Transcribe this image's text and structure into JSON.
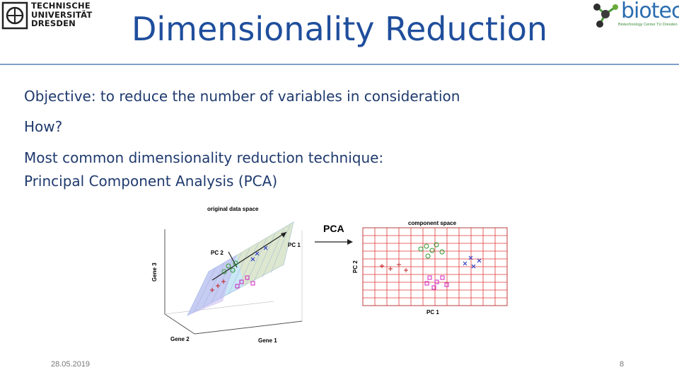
{
  "header": {
    "title": "Dimensionality Reduction",
    "tu_logo": {
      "line1": "TECHNISCHE",
      "line2": "UNIVERSITÄT",
      "line3": "DRESDEN"
    },
    "biotec_logo": {
      "word": "biotec",
      "tagline": "Biotechnology Center TU Dresden"
    }
  },
  "body": {
    "lines": [
      "Objective: to reduce the number of variables in consideration",
      "How?",
      "Most common dimensionality reduction technique:",
      "Principal Component Analysis (PCA)"
    ]
  },
  "figure": {
    "left_title": "original data space",
    "arrow_label": "PCA",
    "right_title": "component space",
    "pc1": "PC 1",
    "pc2": "PC 2",
    "gene1": "Gene 1",
    "gene2": "Gene 2",
    "gene3": "Gene 3",
    "right_xlabel": "PC 1",
    "right_ylabel": "PC 2"
  },
  "footer": {
    "date": "28.05.2019",
    "page": "8"
  },
  "colors": {
    "title": "#1f4e9c",
    "body_text": "#1f3a6e",
    "rule": "#7ea0c8",
    "grid": "#e03a3a"
  }
}
